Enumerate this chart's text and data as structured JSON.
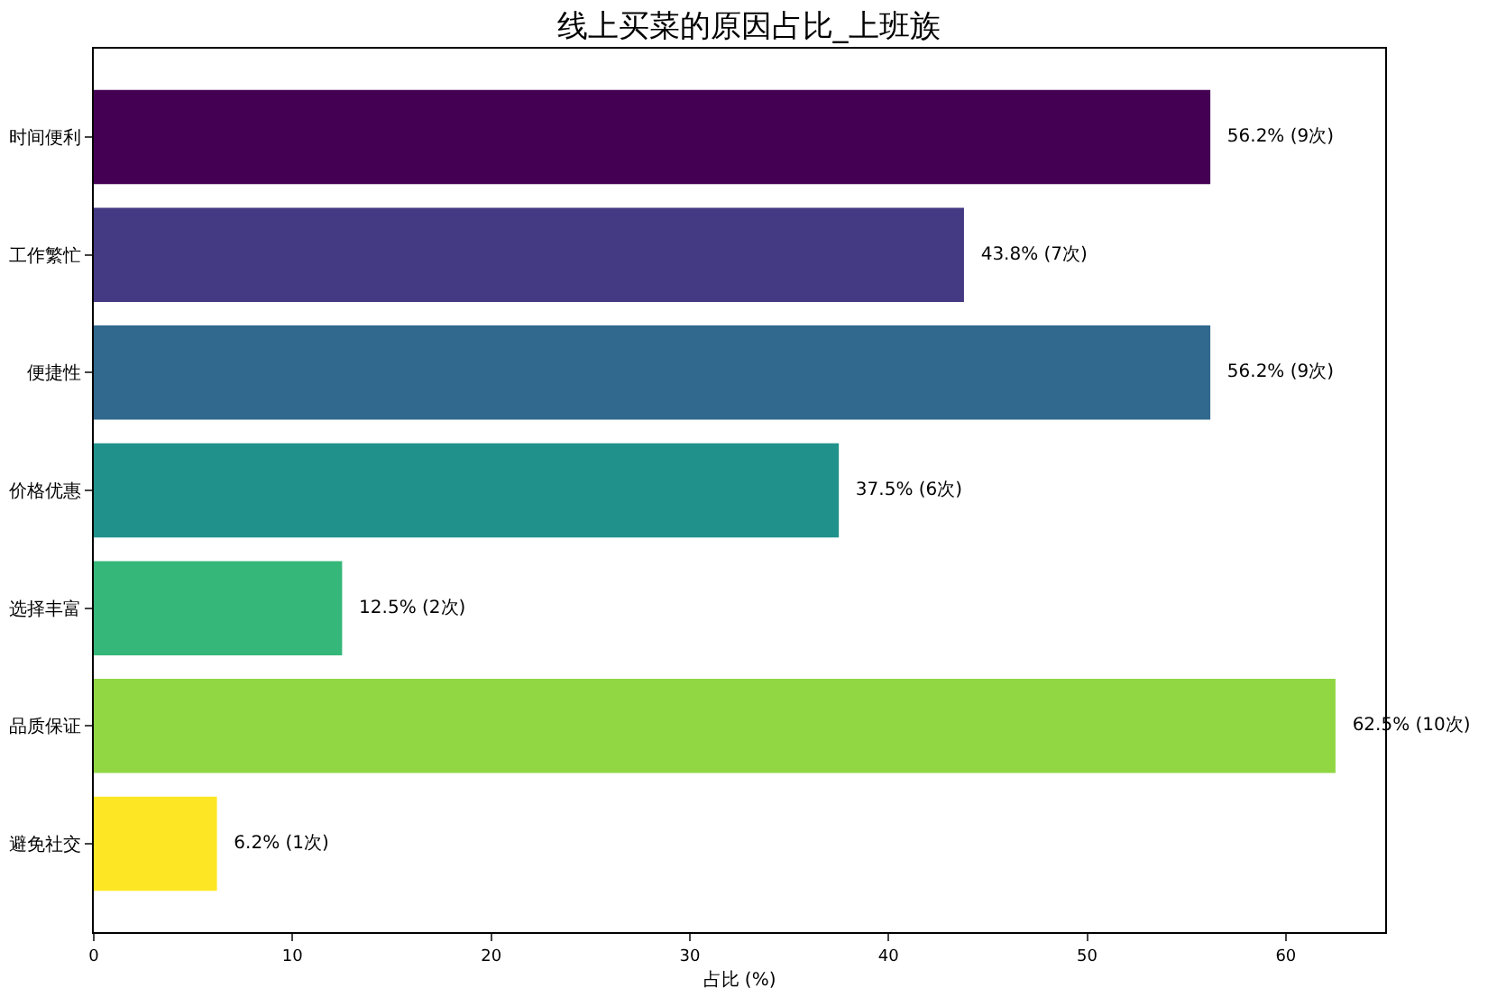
{
  "chart_data": {
    "type": "bar",
    "orientation": "horizontal",
    "title": "线上买菜的原因占比_上班族",
    "xlabel": "占比 (%)",
    "categories": [
      "时间便利",
      "工作繁忙",
      "便捷性",
      "价格优惠",
      "选择丰富",
      "品质保证",
      "避免社交"
    ],
    "values": [
      56.2,
      43.8,
      56.2,
      37.5,
      12.5,
      62.5,
      6.2
    ],
    "colors": [
      "#440154",
      "#443983",
      "#31688e",
      "#21918c",
      "#35b779",
      "#90d743",
      "#fde725"
    ],
    "value_labels": [
      "56.2% (9次)",
      "43.8% (7次)",
      "56.2% (9次)",
      "37.5% (6次)",
      "12.5% (2次)",
      "62.5% (10次)",
      "6.2% (1次)"
    ],
    "xlim": [
      0,
      65
    ],
    "xticks": [
      0,
      10,
      20,
      30,
      40,
      50,
      60
    ],
    "grid": false
  }
}
